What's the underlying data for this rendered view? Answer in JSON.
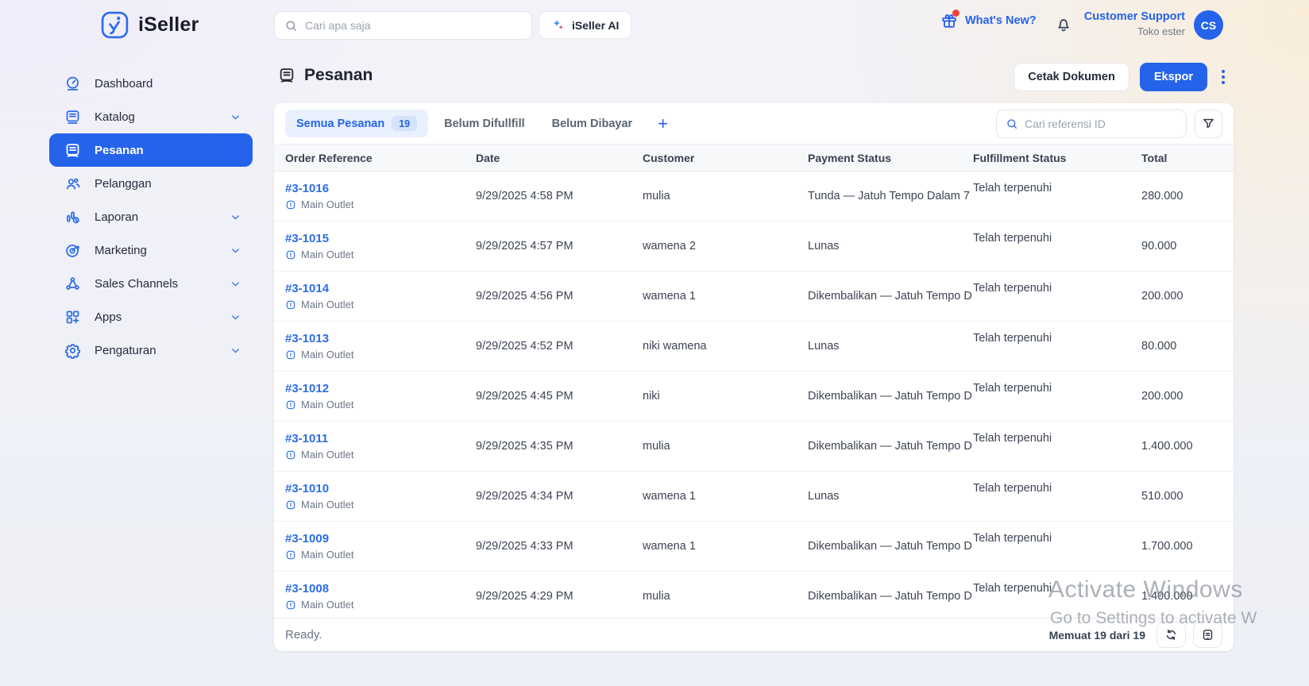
{
  "app": {
    "brand": "iSeller"
  },
  "header": {
    "search_placeholder": "Cari apa saja",
    "ai_button": "iSeller AI",
    "whats_new": "What's New?",
    "account_name": "Customer Support",
    "account_store": "Toko ester",
    "avatar_initials": "CS"
  },
  "sidebar": {
    "items": [
      {
        "label": "Dashboard",
        "icon": "dashboard-gauge",
        "chevron": false,
        "active": false
      },
      {
        "label": "Katalog",
        "icon": "catalog-book",
        "chevron": true,
        "active": false
      },
      {
        "label": "Pesanan",
        "icon": "orders-receipt",
        "chevron": false,
        "active": true
      },
      {
        "label": "Pelanggan",
        "icon": "customers-people",
        "chevron": false,
        "active": false
      },
      {
        "label": "Laporan",
        "icon": "reports-chart",
        "chevron": true,
        "active": false
      },
      {
        "label": "Marketing",
        "icon": "marketing-target",
        "chevron": true,
        "active": false
      },
      {
        "label": "Sales Channels",
        "icon": "sales-channels-network",
        "chevron": true,
        "active": false
      },
      {
        "label": "Apps",
        "icon": "apps-grid",
        "chevron": true,
        "active": false
      },
      {
        "label": "Pengaturan",
        "icon": "settings-gear",
        "chevron": true,
        "active": false
      }
    ]
  },
  "page": {
    "title": "Pesanan",
    "print_button": "Cetak Dokumen",
    "export_button": "Ekspor",
    "add_tab_label": "+"
  },
  "tabs": [
    {
      "label": "Semua Pesanan",
      "badge": "19",
      "active": true
    },
    {
      "label": "Belum Difullfill",
      "active": false
    },
    {
      "label": "Belum Dibayar",
      "active": false
    }
  ],
  "filters": {
    "search_placeholder": "Cari referensi ID"
  },
  "table": {
    "columns": [
      "Order Reference",
      "Date",
      "Customer",
      "Payment Status",
      "Fulfillment Status",
      "Total"
    ],
    "rows": [
      {
        "ref": "#3-1016",
        "outlet": "Main Outlet",
        "date": "9/29/2025 4:58 PM",
        "customer": "mulia",
        "payment": "Tunda — Jatuh Tempo Dalam 7",
        "fulfillment": "Telah terpenuhi",
        "total": "280.000"
      },
      {
        "ref": "#3-1015",
        "outlet": "Main Outlet",
        "date": "9/29/2025 4:57 PM",
        "customer": "wamena 2",
        "payment": "Lunas",
        "fulfillment": "Telah terpenuhi",
        "total": "90.000"
      },
      {
        "ref": "#3-1014",
        "outlet": "Main Outlet",
        "date": "9/29/2025 4:56 PM",
        "customer": "wamena 1",
        "payment": "Dikembalikan — Jatuh Tempo D",
        "fulfillment": "Telah terpenuhi",
        "total": "200.000"
      },
      {
        "ref": "#3-1013",
        "outlet": "Main Outlet",
        "date": "9/29/2025 4:52 PM",
        "customer": "niki wamena",
        "payment": "Lunas",
        "fulfillment": "Telah terpenuhi",
        "total": "80.000"
      },
      {
        "ref": "#3-1012",
        "outlet": "Main Outlet",
        "date": "9/29/2025 4:45 PM",
        "customer": "niki",
        "payment": "Dikembalikan — Jatuh Tempo D",
        "fulfillment": "Telah terpenuhi",
        "total": "200.000"
      },
      {
        "ref": "#3-1011",
        "outlet": "Main Outlet",
        "date": "9/29/2025 4:35 PM",
        "customer": "mulia",
        "payment": "Dikembalikan — Jatuh Tempo D",
        "fulfillment": "Telah terpenuhi",
        "total": "1.400.000"
      },
      {
        "ref": "#3-1010",
        "outlet": "Main Outlet",
        "date": "9/29/2025 4:34 PM",
        "customer": "wamena 1",
        "payment": "Lunas",
        "fulfillment": "Telah terpenuhi",
        "total": "510.000"
      },
      {
        "ref": "#3-1009",
        "outlet": "Main Outlet",
        "date": "9/29/2025 4:33 PM",
        "customer": "wamena 1",
        "payment": "Dikembalikan — Jatuh Tempo D",
        "fulfillment": "Telah terpenuhi",
        "total": "1.700.000"
      },
      {
        "ref": "#3-1008",
        "outlet": "Main Outlet",
        "date": "9/29/2025 4:29 PM",
        "customer": "mulia",
        "payment": "Dikembalikan — Jatuh Tempo D",
        "fulfillment": "Telah terpenuhi",
        "total": "1.400.000"
      }
    ]
  },
  "footer": {
    "status": "Ready.",
    "loading": "Memuat 19 dari 19"
  },
  "watermark": {
    "line1": "Activate Windows",
    "line2": "Go to Settings to activate W"
  },
  "colors": {
    "accent": "#2563eb",
    "link": "#2b6ce9",
    "active_tab_bg": "#e9f1fe",
    "badge_bg": "#d4e2fb",
    "notification_dot": "#f04438",
    "watermark_text": "#79808a"
  }
}
